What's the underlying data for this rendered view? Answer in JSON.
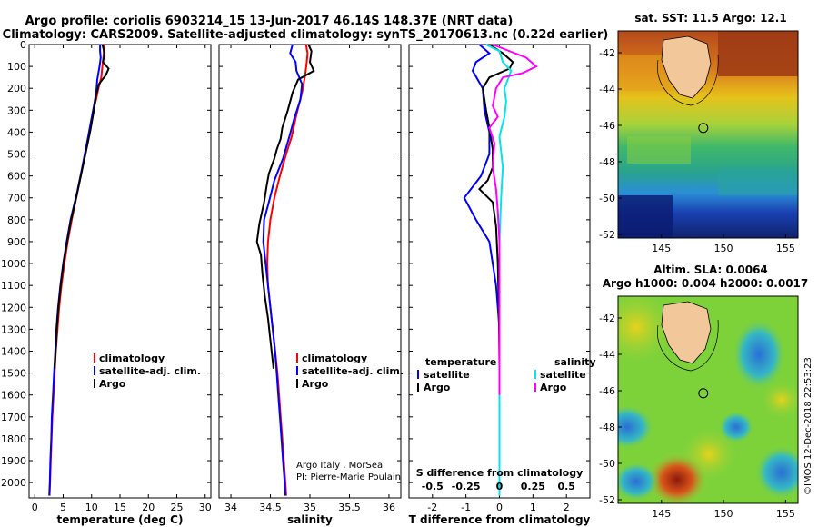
{
  "title": {
    "line1": "Argo profile: coriolis 6903214_15 13-Jun-2017 46.14S 148.37E (NRT data)",
    "line2": "Climatology: CARS2009. Satellite-adjusted climatology: synTS_20170613.nc (0.22d earlier)"
  },
  "credit": {
    "line1": "Argo Italy , MorSea",
    "line2": "PI: Pierre-Marie Poulain"
  },
  "timestamp": "©IMOS 12-Dec-2018 22:53:23",
  "colors": {
    "climatology": "#ff0000",
    "satellite": "#0000ff",
    "argo": "#000000",
    "sat_salinity": "#00e5ee",
    "clim_salinity": "#ff00ff"
  },
  "chart_data": [
    {
      "type": "line",
      "id": "temperature",
      "xlabel": "temperature (deg C)",
      "xlim": [
        -1,
        31
      ],
      "xticks": [
        "0",
        "5",
        "10",
        "15",
        "20",
        "25",
        "30"
      ],
      "xtick_values": [
        0,
        5,
        10,
        15,
        20,
        25,
        30
      ],
      "ylim": [
        2070,
        0
      ],
      "yticks": [
        "0",
        "100",
        "200",
        "300",
        "400",
        "500",
        "600",
        "700",
        "800",
        "900",
        "1000",
        "1100",
        "1200",
        "1300",
        "1400",
        "1500",
        "1600",
        "1700",
        "1800",
        "1900",
        "2000"
      ],
      "ytick_values": [
        0,
        100,
        200,
        300,
        400,
        500,
        600,
        700,
        800,
        900,
        1000,
        1100,
        1200,
        1300,
        1400,
        1500,
        1600,
        1700,
        1800,
        1900,
        2000
      ],
      "legend": [
        "climatology",
        "satellite-adj. clim.",
        "Argo"
      ],
      "series": [
        {
          "name": "climatology",
          "color": "#ff0000",
          "points": [
            [
              12.2,
              0
            ],
            [
              12.1,
              50
            ],
            [
              11.9,
              100
            ],
            [
              11.7,
              150
            ],
            [
              11.2,
              200
            ],
            [
              10.8,
              250
            ],
            [
              10.3,
              300
            ],
            [
              9.7,
              400
            ],
            [
              8.9,
              500
            ],
            [
              8.1,
              600
            ],
            [
              7.3,
              700
            ],
            [
              6.5,
              800
            ],
            [
              5.8,
              900
            ],
            [
              5.2,
              1000
            ],
            [
              4.7,
              1100
            ],
            [
              4.3,
              1200
            ],
            [
              4.0,
              1300
            ],
            [
              3.7,
              1400
            ],
            [
              3.5,
              1500
            ],
            [
              3.3,
              1600
            ],
            [
              3.1,
              1700
            ],
            [
              2.95,
              1800
            ],
            [
              2.8,
              1900
            ],
            [
              2.7,
              2000
            ],
            [
              2.6,
              2060
            ]
          ]
        },
        {
          "name": "satellite-adj. clim.",
          "color": "#0000ff",
          "points": [
            [
              11.5,
              0
            ],
            [
              11.5,
              30
            ],
            [
              11.6,
              60
            ],
            [
              11.4,
              100
            ],
            [
              11.0,
              160
            ],
            [
              10.8,
              220
            ],
            [
              10.4,
              280
            ],
            [
              9.9,
              350
            ],
            [
              9.4,
              420
            ],
            [
              8.8,
              500
            ],
            [
              8.2,
              580
            ],
            [
              7.4,
              680
            ],
            [
              6.3,
              800
            ],
            [
              5.6,
              900
            ],
            [
              5.0,
              1000
            ],
            [
              4.5,
              1100
            ],
            [
              4.1,
              1200
            ],
            [
              3.8,
              1300
            ],
            [
              3.6,
              1400
            ],
            [
              3.4,
              1500
            ],
            [
              3.2,
              1600
            ],
            [
              3.0,
              1700
            ],
            [
              2.9,
              1800
            ],
            [
              2.75,
              1900
            ],
            [
              2.65,
              2000
            ],
            [
              2.55,
              2060
            ]
          ]
        },
        {
          "name": "Argo",
          "color": "#000000",
          "points": [
            [
              11.9,
              0
            ],
            [
              12.3,
              40
            ],
            [
              12.0,
              80
            ],
            [
              13.0,
              110
            ],
            [
              12.5,
              140
            ],
            [
              11.3,
              180
            ],
            [
              10.8,
              230
            ],
            [
              10.4,
              300
            ],
            [
              9.8,
              390
            ],
            [
              9.0,
              490
            ],
            [
              8.1,
              600
            ],
            [
              7.2,
              710
            ],
            [
              6.3,
              810
            ],
            [
              5.7,
              900
            ],
            [
              5.1,
              990
            ],
            [
              4.6,
              1090
            ],
            [
              4.2,
              1190
            ],
            [
              3.9,
              1290
            ],
            [
              3.7,
              1390
            ],
            [
              3.5,
              1480
            ]
          ]
        }
      ]
    },
    {
      "type": "line",
      "id": "salinity",
      "xlabel": "salinity",
      "xlim": [
        33.85,
        36.15
      ],
      "xticks": [
        "34",
        "34.5",
        "35",
        "35.5",
        "36"
      ],
      "xtick_values": [
        34,
        34.5,
        35,
        35.5,
        36
      ],
      "ylim": [
        2070,
        0
      ],
      "legend": [
        "climatology",
        "satellite-adj. clim.",
        "Argo"
      ],
      "series": [
        {
          "name": "climatology",
          "color": "#ff0000",
          "points": [
            [
              34.95,
              0
            ],
            [
              34.97,
              40
            ],
            [
              34.96,
              80
            ],
            [
              34.94,
              140
            ],
            [
              34.9,
              220
            ],
            [
              34.83,
              320
            ],
            [
              34.77,
              420
            ],
            [
              34.7,
              500
            ],
            [
              34.62,
              600
            ],
            [
              34.55,
              700
            ],
            [
              34.5,
              800
            ],
            [
              34.47,
              900
            ],
            [
              34.46,
              1000
            ],
            [
              34.47,
              1100
            ],
            [
              34.5,
              1200
            ],
            [
              34.53,
              1300
            ],
            [
              34.56,
              1400
            ],
            [
              34.59,
              1500
            ],
            [
              34.61,
              1600
            ],
            [
              34.63,
              1700
            ],
            [
              34.65,
              1800
            ],
            [
              34.67,
              1900
            ],
            [
              34.69,
              2000
            ],
            [
              34.7,
              2060
            ]
          ]
        },
        {
          "name": "satellite-adj. clim.",
          "color": "#0000ff",
          "points": [
            [
              34.78,
              0
            ],
            [
              34.75,
              40
            ],
            [
              34.82,
              80
            ],
            [
              34.83,
              120
            ],
            [
              34.9,
              180
            ],
            [
              34.88,
              250
            ],
            [
              34.8,
              340
            ],
            [
              34.74,
              420
            ],
            [
              34.66,
              520
            ],
            [
              34.55,
              620
            ],
            [
              34.48,
              720
            ],
            [
              34.42,
              800
            ],
            [
              34.41,
              900
            ],
            [
              34.44,
              1000
            ],
            [
              34.47,
              1100
            ],
            [
              34.5,
              1200
            ],
            [
              34.53,
              1300
            ],
            [
              34.56,
              1400
            ],
            [
              34.58,
              1500
            ],
            [
              34.6,
              1600
            ],
            [
              34.62,
              1700
            ],
            [
              34.64,
              1800
            ],
            [
              34.66,
              1900
            ],
            [
              34.68,
              2000
            ],
            [
              34.69,
              2060
            ]
          ]
        },
        {
          "name": "Argo",
          "color": "#000000",
          "points": [
            [
              34.98,
              0
            ],
            [
              35.02,
              30
            ],
            [
              35.0,
              80
            ],
            [
              35.05,
              120
            ],
            [
              34.85,
              160
            ],
            [
              34.78,
              220
            ],
            [
              34.72,
              300
            ],
            [
              34.65,
              380
            ],
            [
              34.63,
              430
            ],
            [
              34.58,
              480
            ],
            [
              34.55,
              520
            ],
            [
              34.48,
              590
            ],
            [
              34.45,
              650
            ],
            [
              34.42,
              720
            ],
            [
              34.36,
              820
            ],
            [
              34.33,
              900
            ],
            [
              34.38,
              960
            ],
            [
              34.4,
              1050
            ],
            [
              34.43,
              1150
            ],
            [
              34.47,
              1250
            ],
            [
              34.5,
              1350
            ],
            [
              34.54,
              1480
            ]
          ]
        }
      ]
    },
    {
      "type": "line",
      "id": "difference",
      "xlabel": "T difference from climatology",
      "xlim": [
        -2.7,
        2.7
      ],
      "xticks": [
        "-2",
        "-1",
        "0",
        "1",
        "2"
      ],
      "xtick_values": [
        -2,
        -1,
        0,
        1,
        2
      ],
      "secondary_axis_label": "S difference from climatology",
      "secondary_xticks": [
        "-0.5",
        "-0.25",
        "0",
        "0.25",
        "0.5"
      ],
      "secondary_xtick_values": [
        -0.5,
        -0.25,
        0,
        0.25,
        0.5
      ],
      "ylim": [
        2070,
        0
      ],
      "legend_left_title": "temperature",
      "legend_right_title": "salinity",
      "legend_left": [
        "satellite",
        "Argo"
      ],
      "legend_right": [
        "satellite",
        "Argo"
      ],
      "series": [
        {
          "name": "satellite",
          "color": "#0000ff",
          "points": [
            [
              -0.6,
              0
            ],
            [
              -0.3,
              40
            ],
            [
              -0.7,
              80
            ],
            [
              -0.8,
              120
            ],
            [
              -0.5,
              200
            ],
            [
              -0.45,
              300
            ],
            [
              -0.3,
              400
            ],
            [
              -0.3,
              500
            ],
            [
              -0.55,
              600
            ],
            [
              -1.05,
              700
            ],
            [
              -0.7,
              800
            ],
            [
              -0.3,
              900
            ],
            [
              -0.2,
              1000
            ],
            [
              -0.1,
              1100
            ],
            [
              -0.05,
              1200
            ],
            [
              0,
              1300
            ],
            [
              0,
              1500
            ]
          ]
        },
        {
          "name": "Argo",
          "color": "#000000",
          "points": [
            [
              -0.3,
              0
            ],
            [
              0.1,
              40
            ],
            [
              0.4,
              80
            ],
            [
              0.3,
              110
            ],
            [
              -0.3,
              150
            ],
            [
              -0.5,
              200
            ],
            [
              -0.4,
              300
            ],
            [
              -0.3,
              380
            ],
            [
              -0.2,
              480
            ],
            [
              -0.2,
              560
            ],
            [
              -0.35,
              620
            ],
            [
              -0.6,
              660
            ],
            [
              -0.2,
              720
            ],
            [
              -0.1,
              830
            ],
            [
              -0.05,
              1000
            ],
            [
              -0.02,
              1200
            ],
            [
              0,
              1480
            ]
          ]
        },
        {
          "name": "satellite",
          "color": "#00e5ee",
          "points": [
            [
              -0.4,
              0
            ],
            [
              0.0,
              30
            ],
            [
              0.1,
              80
            ],
            [
              0.35,
              120
            ],
            [
              0.15,
              200
            ],
            [
              0.2,
              260
            ],
            [
              0.15,
              330
            ],
            [
              0.0,
              420
            ],
            [
              0.1,
              560
            ],
            [
              0.05,
              700
            ],
            [
              0.0,
              900
            ],
            [
              0.0,
              1100
            ],
            [
              0.0,
              1500
            ],
            [
              0.0,
              2060
            ]
          ]
        },
        {
          "name": "Argo",
          "color": "#ff00ff",
          "points": [
            [
              -0.2,
              0
            ],
            [
              0.8,
              60
            ],
            [
              1.1,
              100
            ],
            [
              0.7,
              130
            ],
            [
              0.1,
              150
            ],
            [
              -0.1,
              200
            ],
            [
              -0.2,
              280
            ],
            [
              -0.05,
              330
            ],
            [
              -0.3,
              380
            ],
            [
              -0.15,
              450
            ],
            [
              -0.2,
              560
            ],
            [
              -0.1,
              660
            ],
            [
              -0.05,
              760
            ],
            [
              0.0,
              900
            ],
            [
              0.0,
              1100
            ],
            [
              0.0,
              1300
            ],
            [
              0.0,
              1600
            ]
          ]
        }
      ]
    },
    {
      "type": "heatmap",
      "id": "sst_map",
      "title": "sat. SST: 11.5 Argo: 12.1",
      "xticks": [
        "145",
        "150",
        "155"
      ],
      "xtick_values": [
        145,
        150,
        155
      ],
      "xlim": [
        141.5,
        156
      ],
      "yticks": [
        "-42",
        "-44",
        "-46",
        "-48",
        "-50",
        "-52"
      ],
      "ytick_values": [
        -42,
        -44,
        -46,
        -48,
        -50,
        -52
      ],
      "ylim": [
        -52.2,
        -40.8
      ],
      "argo_position": [
        148.37,
        -46.14
      ]
    },
    {
      "type": "heatmap",
      "id": "sla_map",
      "title_line1": "Altim. SLA: 0.0064",
      "title_line2": "Argo h1000: 0.004 h2000: 0.0017",
      "xticks": [
        "145",
        "150",
        "155"
      ],
      "xtick_values": [
        145,
        150,
        155
      ],
      "xlim": [
        141.5,
        156
      ],
      "yticks": [
        "-42",
        "-44",
        "-46",
        "-48",
        "-50",
        "-52"
      ],
      "ytick_values": [
        -42,
        -44,
        -46,
        -48,
        -50,
        -52
      ],
      "ylim": [
        -52.2,
        -40.8
      ],
      "argo_position": [
        148.37,
        -46.14
      ]
    }
  ]
}
